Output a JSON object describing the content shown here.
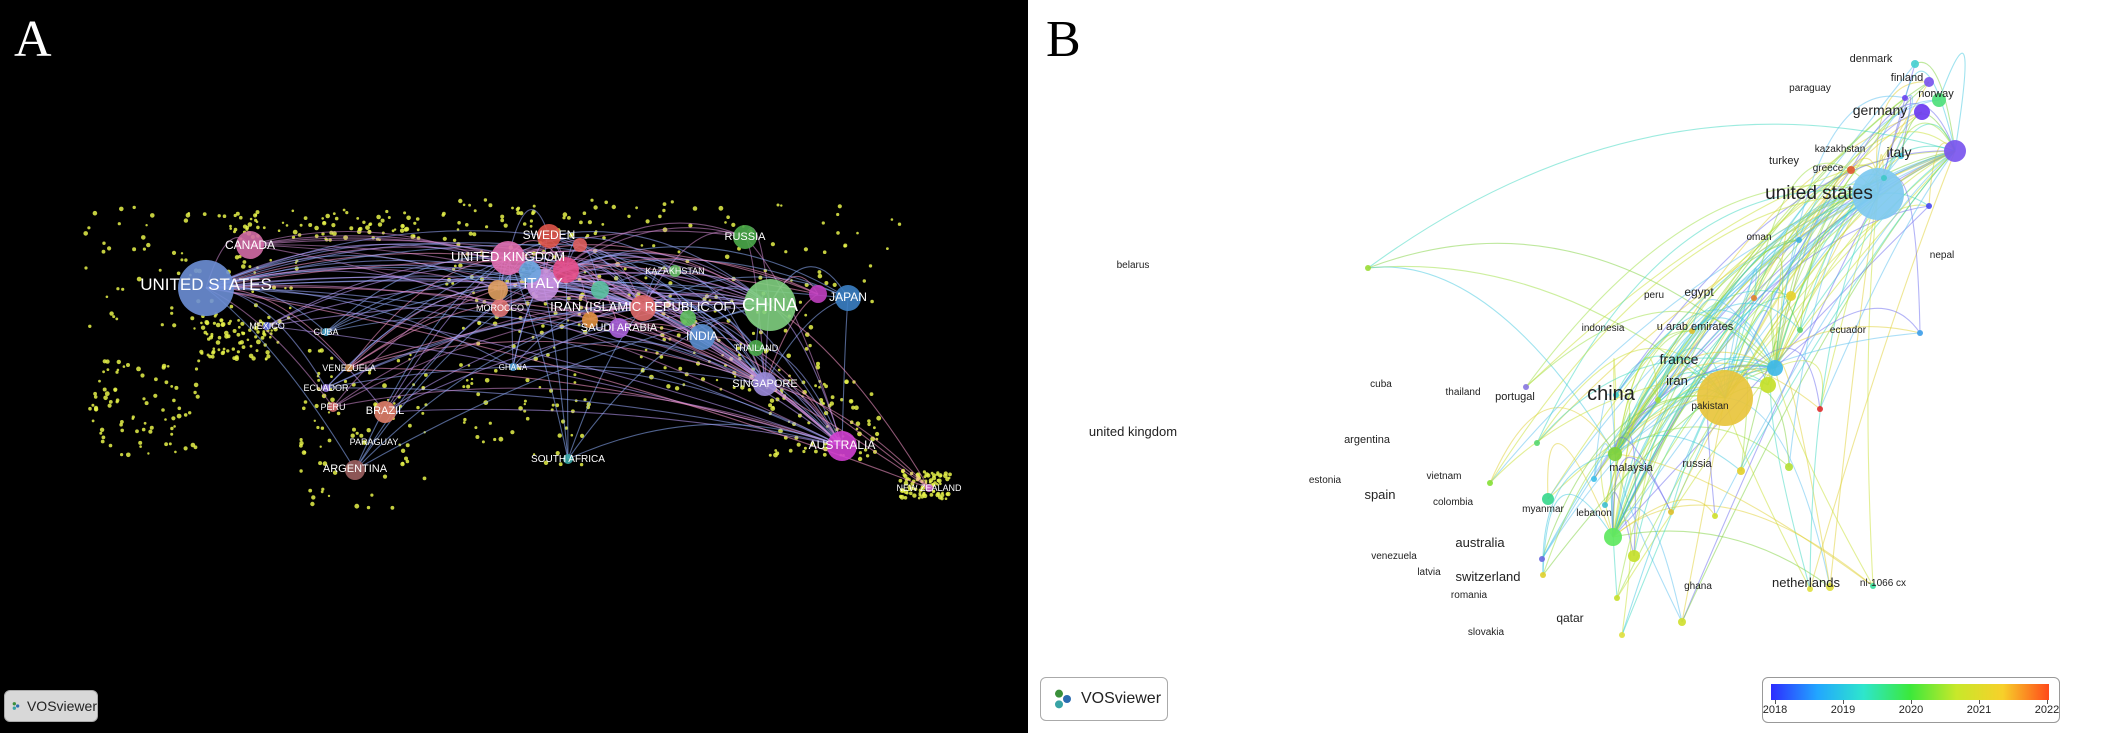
{
  "panels": {
    "a": {
      "letter": "A",
      "button_label": "VOSviewer",
      "labels": [
        "UNITED STATES",
        "CANADA",
        "MEXICO",
        "CUBA",
        "VENEZUELA",
        "ECUADOR",
        "PERU",
        "BRAZIL",
        "PARAGUAY",
        "ARGENTINA",
        "UNITED KINGDOM",
        "SWEDEN",
        "ITALY",
        "MOROCCO",
        "IRAN (ISLAMIC REPUBLIC OF)",
        "SAUDI ARABIA",
        "KAZAKHSTAN",
        "RUSSIA",
        "CHINA",
        "JAPAN",
        "INDIA",
        "THAILAND",
        "SINGAPORE",
        "AUSTRALIA",
        "SOUTH AFRICA",
        "NEW ZEALAND",
        "GHANA"
      ]
    },
    "b": {
      "letter": "B",
      "button_label": "VOSviewer",
      "labels": [
        "denmark",
        "finland",
        "paraguay",
        "norway",
        "germany",
        "kazakhstan",
        "italy",
        "turkey",
        "greece",
        "united states",
        "oman",
        "nepal",
        "belarus",
        "peru",
        "egypt",
        "indonesia",
        "u arab emirates",
        "ecuador",
        "france",
        "iran",
        "cuba",
        "thailand",
        "portugal",
        "china",
        "pakistan",
        "united kingdom",
        "argentina",
        "malaysia",
        "russia",
        "estonia",
        "vietnam",
        "spain",
        "colombia",
        "myanmar",
        "lebanon",
        "australia",
        "venezuela",
        "latvia",
        "switzerland",
        "romania",
        "qatar",
        "slovakia",
        "ghana",
        "netherlands",
        "nl-1066 cx"
      ],
      "legend": {
        "ticks": [
          "2018",
          "2019",
          "2020",
          "2021",
          "2022"
        ],
        "colors": [
          "#2d2dff",
          "#22a6ff",
          "#2ee6cc",
          "#3be83b",
          "#c8e82a",
          "#f7d02a",
          "#ff4a1a"
        ]
      }
    }
  }
}
